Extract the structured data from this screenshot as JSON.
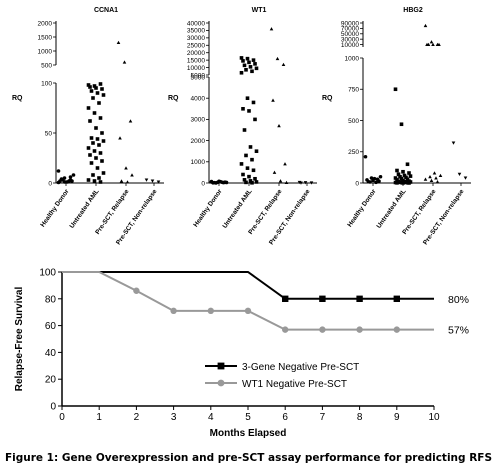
{
  "caption": "Figure 1: Gene Overexpression and pre-SCT assay performance for predicting RFS",
  "chart_data": [
    {
      "type": "scatter",
      "title": "CCNA1",
      "ylabel": "RQ",
      "broken_axis": true,
      "upper_ticks": [
        "500",
        "1000",
        "1500",
        "2000"
      ],
      "upper_range": [
        500,
        2000
      ],
      "lower_ticks": [
        "0",
        "50",
        "100"
      ],
      "lower_range": [
        0,
        100
      ],
      "categories": [
        "Healthy Donor",
        "Untreated AML",
        "Pre-SCT, Relapse",
        "Pre-SCT, Non-relapse"
      ],
      "markers": [
        "circle",
        "square",
        "triangle",
        "triangle-down"
      ],
      "series": [
        {
          "values": [
            12,
            5,
            3,
            2,
            1,
            2,
            4,
            1,
            8,
            3,
            2,
            0.5,
            1,
            6
          ]
        },
        {
          "values": [
            98,
            97,
            99,
            96,
            95,
            94,
            92,
            90,
            88,
            85,
            80,
            75,
            70,
            65,
            62,
            55,
            50,
            45,
            44,
            42,
            40,
            38,
            35,
            32,
            30,
            28,
            25,
            22,
            20,
            15,
            10,
            8,
            5,
            3,
            2,
            1
          ]
        },
        {
          "values": [
            1300,
            600,
            62,
            45,
            15,
            8,
            2,
            1
          ]
        },
        {
          "values": [
            3,
            2,
            1
          ]
        }
      ]
    },
    {
      "type": "scatter",
      "title": "WT1",
      "ylabel": "RQ",
      "broken_axis": true,
      "upper_ticks": [
        "5000",
        "10000",
        "15000",
        "20000",
        "25000",
        "30000",
        "35000",
        "40000"
      ],
      "upper_range": [
        5000,
        40000
      ],
      "lower_ticks": [
        "0",
        "1000",
        "2000",
        "3000",
        "4000",
        "5000"
      ],
      "lower_range": [
        0,
        5000
      ],
      "categories": [
        "Healthy Donor",
        "Untreated AML",
        "Pre-SCT, Relapse",
        "Pre-SCT, Non-relapse"
      ],
      "markers": [
        "circle",
        "square",
        "triangle",
        "triangle-down"
      ],
      "series": [
        {
          "values": [
            50,
            30,
            20,
            10,
            80,
            40,
            15,
            60,
            25,
            5,
            35,
            70
          ]
        },
        {
          "values": [
            16500,
            16000,
            15000,
            14500,
            13500,
            12500,
            11500,
            10500,
            9500,
            8500,
            7500,
            6500,
            4000,
            3800,
            3500,
            3400,
            3000,
            2500,
            1700,
            1500,
            1300,
            1100,
            900,
            700,
            600,
            400,
            300,
            200,
            150,
            100,
            50,
            30,
            10
          ]
        },
        {
          "values": [
            36000,
            16000,
            12000,
            3900,
            2700,
            900,
            500,
            100,
            20
          ]
        },
        {
          "values": [
            30,
            20,
            10,
            5
          ]
        }
      ]
    },
    {
      "type": "scatter",
      "title": "HBG2",
      "ylabel": "RQ",
      "broken_axis": true,
      "upper_ticks": [
        "10000",
        "30000",
        "50000",
        "70000",
        "90000"
      ],
      "upper_range": [
        1000,
        90000
      ],
      "lower_ticks": [
        "0",
        "250",
        "500",
        "750",
        "1000"
      ],
      "lower_range": [
        0,
        1000
      ],
      "categories": [
        "Healthy Donor",
        "Untreated AML",
        "Pre-SCT, Relapse",
        "Pre-SCT, Non-relapse"
      ],
      "markers": [
        "circle",
        "square",
        "triangle",
        "triangle-down"
      ],
      "series": [
        {
          "values": [
            210,
            40,
            30,
            25,
            20,
            15,
            10,
            35,
            50,
            8,
            5
          ]
        },
        {
          "values": [
            750,
            470,
            150,
            100,
            90,
            80,
            70,
            60,
            55,
            50,
            45,
            40,
            35,
            30,
            25,
            20,
            15,
            12,
            10,
            8,
            6,
            5,
            4,
            3,
            2,
            1,
            0.5,
            0.3
          ]
        },
        {
          "values": [
            80000,
            20000,
            10000,
            10000,
            10000,
            10000,
            10000,
            80,
            60,
            50,
            40,
            30,
            20,
            10
          ]
        },
        {
          "values": [
            320,
            70,
            40
          ]
        }
      ]
    },
    {
      "type": "line",
      "xlabel": "Months Elapsed",
      "ylabel": "Relapse-Free Survival",
      "xlim": [
        0,
        10
      ],
      "ylim": [
        0,
        100
      ],
      "x_ticks": [
        "0",
        "1",
        "2",
        "3",
        "4",
        "5",
        "6",
        "7",
        "8",
        "9",
        "10"
      ],
      "y_ticks": [
        "0",
        "20",
        "40",
        "60",
        "80",
        "100"
      ],
      "legend_position": "lower-left",
      "series": [
        {
          "name": "3-Gene Negative Pre-SCT",
          "color": "#000000",
          "marker": "square",
          "x": [
            0,
            1,
            5,
            6,
            10
          ],
          "y": [
            100,
            100,
            100,
            80,
            80
          ],
          "marker_x": [
            6,
            7,
            8,
            9
          ],
          "marker_y": [
            80,
            80,
            80,
            80
          ],
          "end_label": "80%"
        },
        {
          "name": "WT1 Negative Pre-SCT",
          "color": "#999999",
          "marker": "circle",
          "x": [
            0,
            1,
            2,
            3,
            5,
            6,
            10
          ],
          "y": [
            100,
            100,
            86,
            71,
            71,
            57,
            57
          ],
          "marker_x": [
            2,
            3,
            4,
            5,
            6,
            7,
            8,
            9
          ],
          "marker_y": [
            86,
            71,
            71,
            71,
            57,
            57,
            57,
            57
          ],
          "end_label": "57%"
        }
      ]
    }
  ]
}
